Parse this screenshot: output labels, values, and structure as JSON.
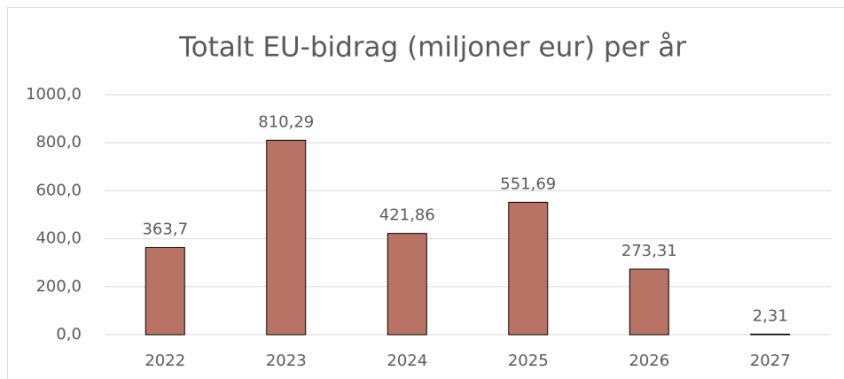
{
  "chart_data": {
    "type": "bar",
    "title": "Totalt EU-bidrag (miljoner eur) per  år",
    "categories": [
      "2022",
      "2023",
      "2024",
      "2025",
      "2026",
      "2027"
    ],
    "values": [
      363.7,
      810.29,
      421.86,
      551.69,
      273.31,
      2.31
    ],
    "value_labels": [
      "363,7",
      "810,29",
      "421,86",
      "551,69",
      "273,31",
      "2,31"
    ],
    "color": "#b87364",
    "ylim": [
      0,
      1000
    ],
    "yticks": [
      {
        "value": 0,
        "label": "0,0"
      },
      {
        "value": 200,
        "label": "200,0"
      },
      {
        "value": 400,
        "label": "400,0"
      },
      {
        "value": 600,
        "label": "600,0"
      },
      {
        "value": 800,
        "label": "800,0"
      },
      {
        "value": 1000,
        "label": "1000,0"
      }
    ],
    "grid": true
  }
}
